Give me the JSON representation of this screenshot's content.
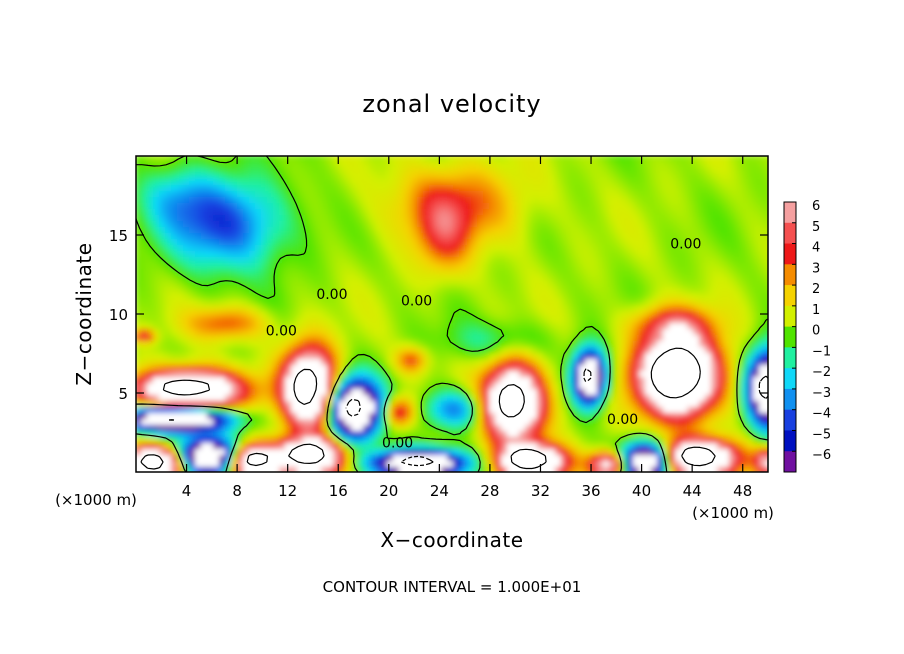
{
  "chart_data": {
    "type": "heatmap",
    "title": "zonal velocity",
    "xlabel": "X−coordinate",
    "ylabel": "Z−coordinate",
    "x_unit": "(×1000 m)",
    "x_unit_left": "(×1000 m)",
    "x_ticks": [
      "4",
      "8",
      "12",
      "16",
      "20",
      "24",
      "28",
      "32",
      "36",
      "40",
      "44",
      "48"
    ],
    "x_tick_values": [
      4,
      8,
      12,
      16,
      20,
      24,
      28,
      32,
      36,
      40,
      44,
      48
    ],
    "y_ticks": [
      "5",
      "10",
      "15"
    ],
    "y_tick_values": [
      5,
      10,
      15
    ],
    "xlim": [
      0,
      50
    ],
    "ylim": [
      0,
      20
    ],
    "footnote": "CONTOUR INTERVAL = 1.000E+01",
    "colorbar": {
      "ticks": [
        "6",
        "5",
        "4",
        "3",
        "2",
        "1",
        "0",
        "−1",
        "−2",
        "−3",
        "−4",
        "−5",
        "−6"
      ],
      "tick_values": [
        6,
        5,
        4,
        3,
        2,
        1,
        0,
        -1,
        -2,
        -3,
        -4,
        -5,
        -6
      ],
      "colors": [
        "#f5a0a0",
        "#f55050",
        "#ee1818",
        "#f58c00",
        "#f5d200",
        "#d2f000",
        "#50e400",
        "#20f0a0",
        "#10d8f8",
        "#1090f0",
        "#1840e0",
        "#0010c0",
        "#7010a0"
      ]
    },
    "contour_labels": [
      {
        "text": "0.00",
        "x": 15.5,
        "y": 11.2
      },
      {
        "text": "0.00",
        "x": 11.5,
        "y": 8.9
      },
      {
        "text": "0.00",
        "x": 22.2,
        "y": 10.8
      },
      {
        "text": "0.00",
        "x": 43.5,
        "y": 14.4
      },
      {
        "text": "0.00",
        "x": 38.5,
        "y": 3.3
      },
      {
        "text": "0.00",
        "x": 20.7,
        "y": 1.8
      }
    ],
    "features": [
      {
        "label": "negative-core",
        "x": 7,
        "y": 15.8,
        "value": -4.5,
        "sx": 4.5,
        "sy": 2.8
      },
      {
        "label": "negative-upper-left",
        "x": 3,
        "y": 17.5,
        "value": -2,
        "sx": 3,
        "sy": 2
      },
      {
        "label": "positive-upper-mid",
        "x": 25,
        "y": 17,
        "value": 3,
        "sx": 5,
        "sy": 2.5
      },
      {
        "label": "positive-upper-mid2",
        "x": 24,
        "y": 15,
        "value": 2.5,
        "sx": 2,
        "sy": 2.5
      },
      {
        "label": "positive-mid-left",
        "x": 7,
        "y": 9.6,
        "value": 3,
        "sx": 3,
        "sy": 1
      },
      {
        "label": "negative-mid",
        "x": 28,
        "y": 8.5,
        "value": -1.5,
        "sx": 4,
        "sy": 1.2
      },
      {
        "label": "positive-right-upper",
        "x": 42,
        "y": 9.5,
        "value": 3.5,
        "sx": 3,
        "sy": 1.2
      },
      {
        "label": "strong-positive-left",
        "x": 4,
        "y": 5.4,
        "value": 12,
        "sx": 4,
        "sy": 1.2
      },
      {
        "label": "strong-positive-12",
        "x": 13.5,
        "y": 5.5,
        "value": 12,
        "sx": 2,
        "sy": 2.4
      },
      {
        "label": "strong-positive-29",
        "x": 29.5,
        "y": 4.6,
        "value": 12,
        "sx": 2.3,
        "sy": 2.3
      },
      {
        "label": "strong-positive-42",
        "x": 42.5,
        "y": 6.3,
        "value": 14,
        "sx": 3,
        "sy": 2.4
      },
      {
        "label": "positive-20",
        "x": 20.5,
        "y": 4.0,
        "value": 4.5,
        "sx": 1.2,
        "sy": 0.9
      },
      {
        "label": "positive-21",
        "x": 21.5,
        "y": 7.3,
        "value": 3,
        "sx": 1.2,
        "sy": 0.8
      },
      {
        "label": "strong-negative-35",
        "x": 35.5,
        "y": 6.2,
        "value": -12,
        "sx": 1.2,
        "sy": 1.6
      },
      {
        "label": "strong-negative-49",
        "x": 49.5,
        "y": 5.5,
        "value": -12,
        "sx": 1.5,
        "sy": 2.2
      },
      {
        "label": "negative-band-left",
        "x": 3,
        "y": 3.6,
        "value": -12,
        "sx": 4,
        "sy": 0.8
      },
      {
        "label": "negative-band-17",
        "x": 17,
        "y": 4.2,
        "value": -12,
        "sx": 2,
        "sy": 1.8
      },
      {
        "label": "negative-band-25",
        "x": 25,
        "y": 4.2,
        "value": -4,
        "sx": 2.5,
        "sy": 1.2
      },
      {
        "label": "positive-bottom-1",
        "x": 1.5,
        "y": 0.8,
        "value": 12,
        "sx": 2.2,
        "sy": 1
      },
      {
        "label": "positive-bottom-9",
        "x": 9,
        "y": 0.9,
        "value": 12,
        "sx": 2,
        "sy": 1
      },
      {
        "label": "positive-bottom-13",
        "x": 13.5,
        "y": 1.2,
        "value": 12,
        "sx": 2.5,
        "sy": 1.1
      },
      {
        "label": "negative-bottom-5",
        "x": 5.5,
        "y": 1.2,
        "value": -12,
        "sx": 2.5,
        "sy": 1.1
      },
      {
        "label": "negative-bottom-22",
        "x": 22,
        "y": 0.8,
        "value": -12,
        "sx": 3.5,
        "sy": 0.8
      },
      {
        "label": "positive-bottom-31",
        "x": 31,
        "y": 0.9,
        "value": 12,
        "sx": 2.5,
        "sy": 1
      },
      {
        "label": "positive-bottom-37",
        "x": 37,
        "y": 0.7,
        "value": 8,
        "sx": 1.5,
        "sy": 0.8
      },
      {
        "label": "negative-bottom-40",
        "x": 40,
        "y": 0.9,
        "value": -12,
        "sx": 2,
        "sy": 1.1
      },
      {
        "label": "positive-bottom-44",
        "x": 44,
        "y": 1.1,
        "value": 12,
        "sx": 3,
        "sy": 1.1
      },
      {
        "label": "positive-bottom-49",
        "x": 49.5,
        "y": 0.9,
        "value": 6,
        "sx": 1,
        "sy": 0.8
      },
      {
        "label": "positive-left-8",
        "x": 0.5,
        "y": 8.8,
        "value": 4,
        "sx": 0.8,
        "sy": 0.4
      }
    ]
  }
}
